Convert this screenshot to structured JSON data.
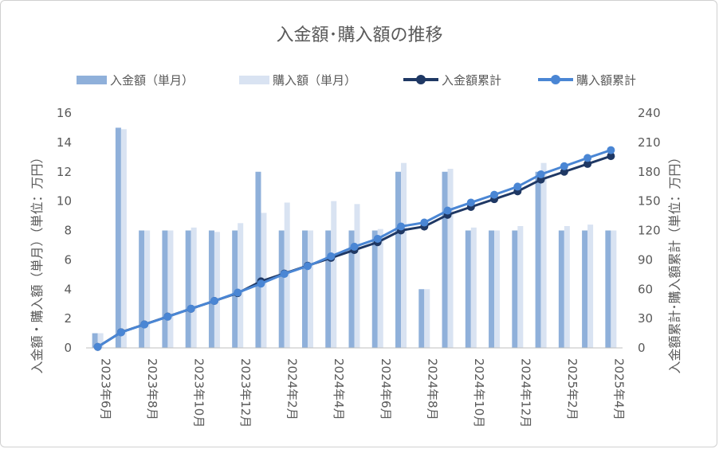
{
  "chart_data": {
    "type": "bar",
    "title": "入金額･購入額の推移",
    "ylabel": "入金額・購入額（単月）（単位：万円）",
    "y2label": "入金額累計･購入額累計（単位：万円）",
    "ylim": [
      0,
      16
    ],
    "y2lim": [
      0,
      240
    ],
    "yticks": [
      "0",
      "2",
      "4",
      "6",
      "8",
      "10",
      "12",
      "14",
      "16"
    ],
    "y2ticks": [
      "0",
      "30",
      "60",
      "90",
      "120",
      "150",
      "180",
      "210",
      "240"
    ],
    "legend_position": "top",
    "grid": false,
    "categories": [
      "2023年6月",
      "2023年7月",
      "2023年8月",
      "2023年9月",
      "2023年10月",
      "2023年11月",
      "2023年12月",
      "2024年1月",
      "2024年2月",
      "2024年3月",
      "2024年4月",
      "2024年5月",
      "2024年6月",
      "2024年7月",
      "2024年8月",
      "2024年9月",
      "2024年10月",
      "2024年11月",
      "2024年12月",
      "2025年1月",
      "2025年2月",
      "2025年3月",
      "2025年4月"
    ],
    "xticks": [
      "2023年6月",
      "2023年8月",
      "2023年10月",
      "2023年12月",
      "2024年2月",
      "2024年4月",
      "2024年6月",
      "2024年8月",
      "2024年10月",
      "2024年12月",
      "2025年2月",
      "2025年4月"
    ],
    "series": [
      {
        "name": "入金額（単月）",
        "type": "bar",
        "axis": "left",
        "color": "#8fb0da",
        "values": [
          1,
          15,
          8,
          8,
          8,
          8,
          8,
          12,
          8,
          8,
          8,
          8,
          8,
          12,
          4,
          12,
          8,
          8,
          8,
          12,
          8,
          8,
          8
        ]
      },
      {
        "name": "購入額（単月）",
        "type": "bar",
        "axis": "left",
        "color": "#d9e3f2",
        "values": [
          1,
          14.9,
          8,
          8,
          8.2,
          7.9,
          8.5,
          9.2,
          9.9,
          8,
          10,
          9.8,
          8.1,
          12.6,
          4,
          12.2,
          8.2,
          8,
          8.3,
          12.6,
          8.3,
          8.4,
          8
        ]
      },
      {
        "name": "入金額累計",
        "type": "line",
        "axis": "right",
        "color": "#1f3864",
        "values": [
          1,
          16,
          24,
          32,
          40,
          48,
          56,
          68,
          76,
          84,
          92,
          100,
          108,
          120,
          124,
          136,
          144,
          152,
          160,
          172,
          180,
          188,
          196
        ]
      },
      {
        "name": "購入額累計",
        "type": "line",
        "axis": "right",
        "color": "#4a86d4",
        "values": [
          1,
          15.9,
          23.9,
          31.9,
          40.1,
          48,
          56.5,
          65.7,
          75.6,
          83.6,
          93.6,
          103.4,
          111.5,
          124.1,
          128.1,
          140.3,
          148.5,
          156.5,
          164.8,
          177.4,
          185.7,
          194.1,
          202.1
        ]
      }
    ]
  }
}
